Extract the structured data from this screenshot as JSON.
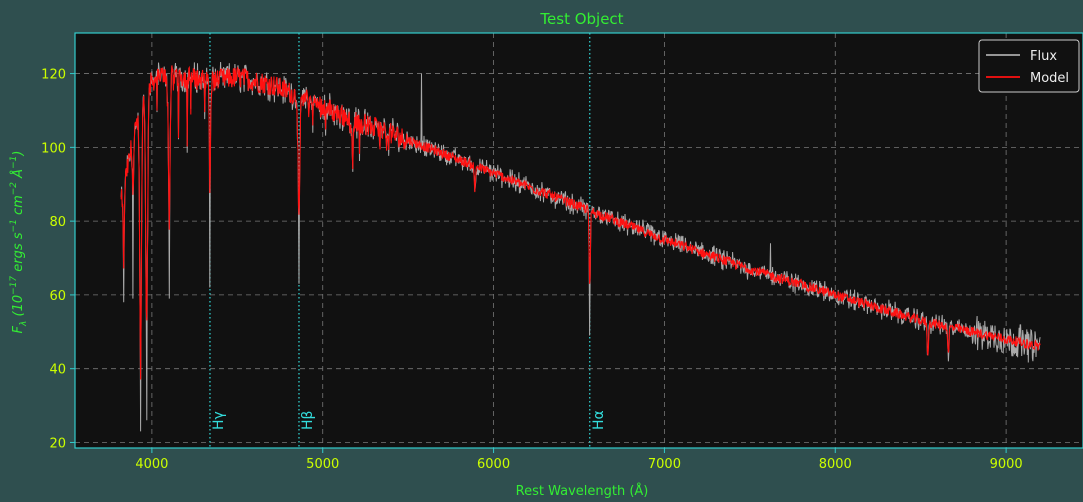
{
  "colors": {
    "figure_bg": "#2f4f4f",
    "axes_bg": "#111111",
    "spine": "#33cccc",
    "title": "#33ee33",
    "tick_label": "#ccff00",
    "grid": "#777777",
    "flux": "#aaaaaa",
    "model": "#ff1111",
    "line_marker": "#33dddd"
  },
  "chart_data": {
    "type": "line",
    "title": "Test Object",
    "xlabel": "Rest Wavelength (Å)",
    "ylabel": "F_λ (10^-17 ergs s^-1 cm^-2 Å^-1)",
    "xlim": [
      3550,
      9450
    ],
    "ylim": [
      18.5,
      131
    ],
    "xticks": [
      4000,
      5000,
      6000,
      7000,
      8000,
      9000
    ],
    "yticks": [
      20,
      40,
      60,
      80,
      100,
      120
    ],
    "grid": true,
    "legend": {
      "position": "top-right",
      "entries": [
        "Flux",
        "Model"
      ]
    },
    "series": [
      {
        "name": "Model",
        "color": "#ff1111",
        "continuum": {
          "x": [
            3820,
            3880,
            3950,
            4000,
            4100,
            4200,
            4350,
            4500,
            4700,
            4850,
            5000,
            5200,
            5500,
            6000,
            6500,
            7000,
            7500,
            8000,
            8500,
            9000,
            9200
          ],
          "y": [
            85,
            100,
            113,
            118,
            120,
            119,
            118,
            119,
            117,
            114,
            111,
            107,
            102,
            93,
            84,
            75,
            67,
            60,
            53,
            48,
            46
          ]
        },
        "absorption": [
          {
            "x": 3835,
            "depth": 20
          },
          {
            "x": 3890,
            "depth": 15
          },
          {
            "x": 3934,
            "depth": 70
          },
          {
            "x": 3969,
            "depth": 65
          },
          {
            "x": 4102,
            "depth": 40
          },
          {
            "x": 4340,
            "depth": 30
          },
          {
            "x": 4861,
            "depth": 35
          },
          {
            "x": 5175,
            "depth": 14
          },
          {
            "x": 5890,
            "depth": 7
          },
          {
            "x": 6563,
            "depth": 22
          },
          {
            "x": 8542,
            "depth": 10
          },
          {
            "x": 8662,
            "depth": 8
          }
        ]
      },
      {
        "name": "Flux",
        "color": "#aaaaaa",
        "notes": "observed spectrum follows model with added noise and deeper cores",
        "deep_points": [
          {
            "x": 3835,
            "y": 58
          },
          {
            "x": 3890,
            "y": 59
          },
          {
            "x": 3934,
            "y": 23
          },
          {
            "x": 3969,
            "y": 26
          },
          {
            "x": 4102,
            "y": 59
          },
          {
            "x": 4340,
            "y": 62
          },
          {
            "x": 4861,
            "y": 63
          },
          {
            "x": 5577,
            "y": 120
          },
          {
            "x": 6563,
            "y": 49
          },
          {
            "x": 8662,
            "y": 42
          },
          {
            "x": 7620,
            "y": 74
          }
        ]
      }
    ],
    "annotations": [
      {
        "x": 4340,
        "label": "Hγ"
      },
      {
        "x": 4861,
        "label": "Hβ"
      },
      {
        "x": 6563,
        "label": "Hα"
      }
    ]
  }
}
